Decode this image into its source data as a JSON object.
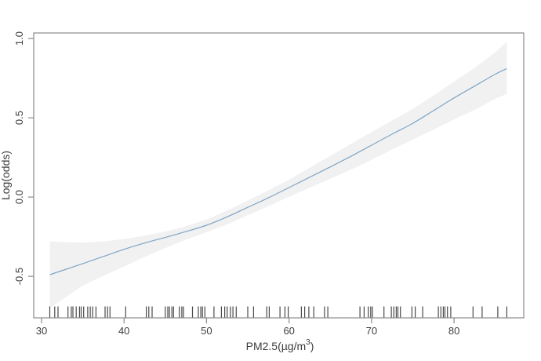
{
  "figure": {
    "background": "#ffffff",
    "xlabel_parts": {
      "pre": "PM2.5(µg/m",
      "sup": "3",
      "post": ")"
    }
  },
  "chart_data": {
    "type": "line",
    "title": "",
    "xlabel": "PM2.5(µg/m³)",
    "ylabel": "Log(odds)",
    "xlim": [
      29.05,
      88.45
    ],
    "ylim": [
      -0.762,
      1.035
    ],
    "grid": false,
    "legend": "none",
    "x_ticks": [
      30,
      40,
      50,
      60,
      70,
      80
    ],
    "x_tick_labels": [
      "30",
      "40",
      "50",
      "60",
      "70",
      "80"
    ],
    "y_ticks": [
      -0.5,
      0.0,
      0.5,
      1.0
    ],
    "y_tick_labels": [
      "-0.5",
      "0.0",
      "0.5",
      "1.0"
    ],
    "colors": {
      "smooth_line": "#7EA6C8",
      "confidence_band": "#F1F1F1",
      "axis": "#8a8a8a",
      "rug": "#2b2b2b",
      "text": "#3d3d3d"
    },
    "series": [
      {
        "name": "gam-smooth",
        "type": "line",
        "x": [
          31,
          33,
          35,
          37.5,
          40,
          42.5,
          45,
          47.5,
          50,
          52.5,
          55,
          57.5,
          60,
          62.5,
          65,
          67.5,
          70,
          72.5,
          75,
          77.5,
          80,
          82.5,
          85,
          86.4
        ],
        "y": [
          -0.49,
          -0.455,
          -0.42,
          -0.375,
          -0.33,
          -0.29,
          -0.255,
          -0.218,
          -0.178,
          -0.125,
          -0.065,
          -0.005,
          0.06,
          0.125,
          0.19,
          0.257,
          0.327,
          0.397,
          0.465,
          0.545,
          0.625,
          0.7,
          0.775,
          0.81
        ]
      },
      {
        "name": "confidence-band",
        "type": "band",
        "x": [
          31,
          33,
          35,
          37.5,
          40,
          42.5,
          45,
          47.5,
          50,
          52.5,
          55,
          57.5,
          60,
          62.5,
          65,
          67.5,
          70,
          72.5,
          75,
          77.5,
          80,
          82.5,
          85,
          86.4
        ],
        "upper": [
          -0.28,
          -0.285,
          -0.288,
          -0.28,
          -0.265,
          -0.243,
          -0.218,
          -0.185,
          -0.142,
          -0.085,
          -0.022,
          0.042,
          0.11,
          0.185,
          0.26,
          0.335,
          0.41,
          0.483,
          0.557,
          0.64,
          0.728,
          0.815,
          0.912,
          0.98
        ],
        "lower": [
          -0.7,
          -0.63,
          -0.558,
          -0.497,
          -0.438,
          -0.378,
          -0.322,
          -0.268,
          -0.222,
          -0.172,
          -0.115,
          -0.058,
          0.002,
          0.06,
          0.115,
          0.172,
          0.235,
          0.3,
          0.363,
          0.425,
          0.49,
          0.55,
          0.62,
          0.65
        ]
      }
    ],
    "rug": {
      "side": "bottom",
      "values": [
        31.0,
        31.6,
        32.0,
        33.2,
        33.6,
        33.8,
        34.2,
        34.6,
        34.8,
        35.1,
        35.6,
        35.9,
        36.2,
        36.6,
        37.7,
        38.0,
        38.3,
        40.2,
        42.7,
        43.0,
        43.4,
        45.0,
        45.3,
        45.5,
        45.8,
        46.0,
        46.7,
        47.0,
        47.2,
        48.3,
        49.0,
        49.3,
        49.5,
        49.8,
        50.9,
        51.8,
        52.2,
        52.5,
        52.9,
        53.2,
        53.6,
        55.0,
        55.7,
        57.3,
        57.6,
        58.9,
        59.5,
        59.9,
        61.5,
        61.9,
        62.4,
        63.0,
        64.3,
        64.7,
        68.6,
        69.1,
        69.6,
        69.9,
        70.1,
        71.5,
        72.4,
        72.7,
        73.0,
        73.2,
        73.5,
        74.9,
        75.3,
        76.2,
        78.1,
        78.4,
        78.7,
        78.9,
        79.2,
        79.6,
        82.3,
        83.4,
        85.3,
        86.4
      ]
    }
  }
}
